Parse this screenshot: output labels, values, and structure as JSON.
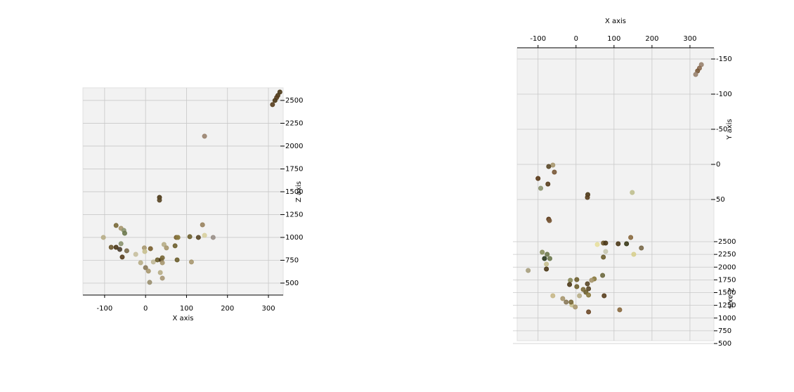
{
  "chart_data": [
    {
      "type": "scatter",
      "xlabel": "X axis",
      "ylabel": "Z axis",
      "xlim": [
        -153,
        336
      ],
      "ylim": [
        369,
        2638
      ],
      "xticks": [
        -100,
        0,
        100,
        200,
        300
      ],
      "yticks": [
        500,
        750,
        1000,
        1250,
        1500,
        1750,
        2000,
        2250,
        2500
      ],
      "grid": true,
      "x": [
        328,
        323,
        320,
        316,
        310,
        144,
        34,
        34,
        -72,
        -60,
        -53,
        -51,
        -103,
        -84,
        -72,
        -63,
        -60,
        -46,
        -57,
        -3,
        -2,
        12,
        -24,
        -12,
        0,
        7,
        19,
        29,
        38,
        41,
        45,
        51,
        41,
        36,
        41,
        10,
        72,
        75,
        79,
        77,
        112,
        108,
        129,
        139,
        144,
        165
      ],
      "y": [
        2592,
        2554,
        2531,
        2500,
        2454,
        2108,
        1438,
        1408,
        1131,
        1100,
        1077,
        1046,
        1000,
        892,
        892,
        869,
        931,
        854,
        785,
        885,
        846,
        877,
        815,
        723,
        669,
        631,
        731,
        754,
        754,
        723,
        923,
        885,
        777,
        615,
        554,
        508,
        908,
        1000,
        1000,
        754,
        731,
        1008,
        1000,
        1138,
        1023,
        1000
      ],
      "colors": [
        "#4d3a1a",
        "#4d3a1a",
        "#5a4020",
        "#4d3a1a",
        "#5a4020",
        "#9a8470",
        "#4d3a1a",
        "#5a4828",
        "#7a6a3a",
        "#a89870",
        "#8c9470",
        "#6e7a50",
        "#b8ae88",
        "#6e5a30",
        "#4d3a1a",
        "#4d4030",
        "#8c9470",
        "#7a6a4a",
        "#5a4020",
        "#a89870",
        "#c8c090",
        "#7a6030",
        "#c8c0a0",
        "#b8ae88",
        "#8a7a5a",
        "#a89870",
        "#c0b898",
        "#6e6030",
        "#4d3a1a",
        "#a89870",
        "#b8ae88",
        "#a89870",
        "#7a6a3a",
        "#b8ae88",
        "#a89878",
        "#9a9070",
        "#6e6030",
        "#7a6030",
        "#8a7a40",
        "#6e6030",
        "#a89870",
        "#6e6030",
        "#5a4828",
        "#9a8460",
        "#d8d0a0",
        "#9a9088"
      ]
    },
    {
      "type": "scatter",
      "xlabel": "X axis",
      "ylabel": "Y axis",
      "y2label": "Z axis",
      "xlim": [
        -155,
        363
      ],
      "ylim": [
        251,
        -166
      ],
      "xticks": [
        -100,
        0,
        100,
        200,
        300
      ],
      "yticks": [
        -150,
        -100,
        -50,
        0,
        50
      ],
      "y2lim": [
        500,
        2500
      ],
      "y2ticks": [
        500,
        750,
        1000,
        1250,
        1500,
        1750,
        2000,
        2250,
        2500
      ],
      "grid": true,
      "x": [
        330,
        325,
        320,
        315,
        -61,
        -72,
        -57,
        -100,
        -74,
        -93,
        31,
        30,
        148,
        -72,
        -70,
        72,
        78,
        111,
        133,
        144,
        172,
        56,
        152,
        78,
        72,
        -89,
        -76,
        -83,
        -69,
        -78,
        -78,
        -126,
        70,
        -15,
        2,
        48,
        41,
        -17,
        30,
        2,
        19,
        33,
        26,
        33,
        9,
        74,
        -61,
        -35,
        -26,
        -11,
        -2,
        -13,
        33,
        115
      ],
      "y": [
        -142,
        -137,
        -133,
        -128,
        1,
        3,
        11,
        20,
        28,
        34,
        43,
        47,
        40,
        78,
        80,
        112,
        112,
        113,
        113,
        104,
        119,
        114,
        128,
        124,
        132,
        125,
        128,
        134,
        134,
        142,
        149,
        151,
        158,
        165,
        164,
        163,
        165,
        171,
        170,
        174,
        178,
        177,
        182,
        186,
        187,
        187,
        187,
        191,
        196,
        200,
        203,
        196,
        210,
        207
      ],
      "colors": [
        "#9a8470",
        "#8a6a50",
        "#7a5a3a",
        "#9a8470",
        "#a89870",
        "#5a4828",
        "#7a5a3a",
        "#5a3a1a",
        "#5a4020",
        "#8c9470",
        "#4d3a1a",
        "#5a4020",
        "#c0c090",
        "#5a3a1a",
        "#7a5a3a",
        "#6e5a30",
        "#4d3a1a",
        "#4d3a1a",
        "#3a3a1a",
        "#8a6a40",
        "#7a6a4a",
        "#e8e0a0",
        "#d8d090",
        "#c8c8b0",
        "#6e6030",
        "#8a9060",
        "#6e7a50",
        "#2a3a20",
        "#6e7a50",
        "#c8c090",
        "#4d3a1a",
        "#a8a080",
        "#6e6a40",
        "#8a8a5a",
        "#6e6030",
        "#8a7a40",
        "#a89870",
        "#4d3a1a",
        "#5a4828",
        "#6e6030",
        "#7a6a3a",
        "#5a4828",
        "#6e6030",
        "#8a7a40",
        "#b8ae88",
        "#5a4020",
        "#c8b888",
        "#a89870",
        "#8a7a5a",
        "#c8c090",
        "#a89870",
        "#7a6a3a",
        "#6e4a2a",
        "#8a6a40"
      ]
    }
  ]
}
